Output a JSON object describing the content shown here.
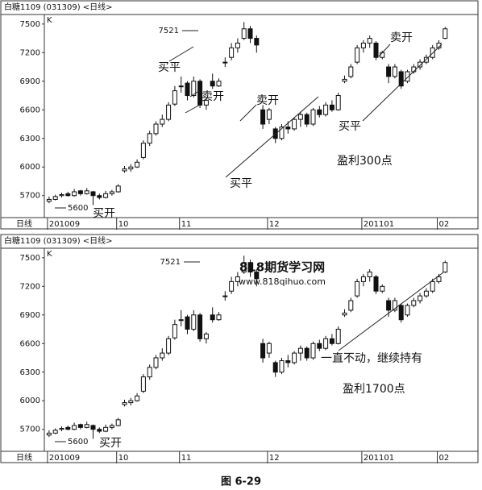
{
  "caption": "图 6-29",
  "chart_data": [
    {
      "type": "candlestick",
      "title": "白糖1109 (031309) <日线>",
      "k_label": "K",
      "period_label": "日线",
      "categories": [
        "201009",
        null,
        null,
        null,
        null,
        null,
        null,
        null,
        null,
        null,
        null,
        "10",
        null,
        null,
        null,
        null,
        null,
        null,
        null,
        null,
        null,
        "11",
        null,
        null,
        null,
        null,
        null,
        null,
        null,
        null,
        null,
        null,
        null,
        null,
        null,
        "12",
        null,
        null,
        null,
        null,
        null,
        null,
        null,
        null,
        null,
        null,
        null,
        null,
        null,
        null,
        "201101",
        null,
        null,
        null,
        null,
        null,
        null,
        null,
        null,
        null,
        null,
        null,
        "02",
        null
      ],
      "ohlc": [
        [
          5640,
          5690,
          5620,
          5660
        ],
        [
          5660,
          5710,
          5650,
          5690
        ],
        [
          5700,
          5730,
          5680,
          5710
        ],
        [
          5720,
          5740,
          5690,
          5700
        ],
        [
          5700,
          5770,
          5690,
          5740
        ],
        [
          5750,
          5760,
          5700,
          5720
        ],
        [
          5720,
          5780,
          5710,
          5750
        ],
        [
          5740,
          5750,
          5600,
          5700
        ],
        [
          5700,
          5720,
          5660,
          5680
        ],
        [
          5680,
          5750,
          5670,
          5720
        ],
        [
          5720,
          5760,
          5700,
          5740
        ],
        [
          5740,
          5820,
          5730,
          5800
        ],
        [
          5960,
          6010,
          5940,
          5980
        ],
        [
          5980,
          6030,
          5950,
          6000
        ],
        [
          6000,
          6080,
          5990,
          6050
        ],
        [
          6100,
          6280,
          6080,
          6250
        ],
        [
          6250,
          6380,
          6220,
          6350
        ],
        [
          6350,
          6480,
          6330,
          6450
        ],
        [
          6450,
          6550,
          6420,
          6500
        ],
        [
          6500,
          6680,
          6480,
          6650
        ],
        [
          6660,
          6850,
          6640,
          6800
        ],
        [
          6850,
          6950,
          6780,
          6850
        ],
        [
          6880,
          6900,
          6700,
          6750
        ],
        [
          6750,
          6950,
          6730,
          6900
        ],
        [
          6900,
          6920,
          6620,
          6650
        ],
        [
          6650,
          6720,
          6600,
          6700
        ],
        [
          6900,
          6980,
          6820,
          6850
        ],
        [
          6850,
          6930,
          6840,
          6900
        ],
        [
          7100,
          7150,
          7050,
          7100
        ],
        [
          7150,
          7300,
          7120,
          7250
        ],
        [
          7250,
          7350,
          7200,
          7300
        ],
        [
          7350,
          7521,
          7330,
          7450
        ],
        [
          7450,
          7480,
          7300,
          7350
        ],
        [
          7350,
          7380,
          7200,
          7280
        ],
        [
          6600,
          6650,
          6400,
          6450
        ],
        [
          6500,
          6620,
          6450,
          6600
        ],
        [
          6400,
          6420,
          6250,
          6300
        ],
        [
          6300,
          6450,
          6280,
          6420
        ],
        [
          6420,
          6480,
          6350,
          6400
        ],
        [
          6400,
          6520,
          6380,
          6500
        ],
        [
          6500,
          6580,
          6420,
          6550
        ],
        [
          6550,
          6570,
          6420,
          6450
        ],
        [
          6450,
          6620,
          6430,
          6600
        ],
        [
          6600,
          6640,
          6520,
          6550
        ],
        [
          6550,
          6680,
          6530,
          6650
        ],
        [
          6650,
          6700,
          6580,
          6600
        ],
        [
          6600,
          6780,
          6590,
          6750
        ],
        [
          6900,
          6960,
          6880,
          6920
        ],
        [
          6950,
          7080,
          6930,
          7050
        ],
        [
          7100,
          7280,
          7080,
          7250
        ],
        [
          7250,
          7330,
          7200,
          7300
        ],
        [
          7300,
          7380,
          7250,
          7350
        ],
        [
          7300,
          7320,
          7120,
          7150
        ],
        [
          7150,
          7220,
          7130,
          7200
        ],
        [
          7050,
          7080,
          6880,
          6950
        ],
        [
          6950,
          7080,
          6930,
          7050
        ],
        [
          7000,
          7020,
          6820,
          6850
        ],
        [
          6900,
          7020,
          6880,
          7000
        ],
        [
          7000,
          7080,
          6980,
          7050
        ],
        [
          7050,
          7130,
          7020,
          7100
        ],
        [
          7100,
          7180,
          7080,
          7150
        ],
        [
          7150,
          7280,
          7130,
          7250
        ],
        [
          7250,
          7330,
          7230,
          7300
        ],
        [
          7350,
          7470,
          7340,
          7450
        ]
      ],
      "ylim": [
        5520,
        7600
      ],
      "yticks": [
        5700,
        6000,
        6300,
        6600,
        6900,
        7200,
        7500
      ],
      "annotations": [
        "7521",
        "买平",
        "卖开",
        "卖开",
        "买平",
        "卖开",
        "买平",
        "盈利300点",
        "买开",
        "5600"
      ]
    },
    {
      "type": "candlestick",
      "title": "白糖1109 (031309) <日线>",
      "k_label": "K",
      "period_label": "日线",
      "categories": [
        "201009",
        null,
        null,
        null,
        null,
        null,
        null,
        null,
        null,
        null,
        null,
        "10",
        null,
        null,
        null,
        null,
        null,
        null,
        null,
        null,
        null,
        "11",
        null,
        null,
        null,
        null,
        null,
        null,
        null,
        null,
        null,
        null,
        null,
        null,
        null,
        "12",
        null,
        null,
        null,
        null,
        null,
        null,
        null,
        null,
        null,
        null,
        null,
        null,
        null,
        null,
        "201101",
        null,
        null,
        null,
        null,
        null,
        null,
        null,
        null,
        null,
        null,
        null,
        "02",
        null
      ],
      "ohlc": [
        [
          5640,
          5690,
          5620,
          5660
        ],
        [
          5660,
          5710,
          5650,
          5690
        ],
        [
          5700,
          5730,
          5680,
          5710
        ],
        [
          5720,
          5740,
          5690,
          5700
        ],
        [
          5700,
          5770,
          5690,
          5740
        ],
        [
          5750,
          5760,
          5700,
          5720
        ],
        [
          5720,
          5780,
          5710,
          5750
        ],
        [
          5740,
          5750,
          5600,
          5700
        ],
        [
          5700,
          5720,
          5660,
          5680
        ],
        [
          5680,
          5750,
          5670,
          5720
        ],
        [
          5720,
          5760,
          5700,
          5740
        ],
        [
          5740,
          5820,
          5730,
          5800
        ],
        [
          5960,
          6010,
          5940,
          5980
        ],
        [
          5980,
          6030,
          5950,
          6000
        ],
        [
          6000,
          6080,
          5990,
          6050
        ],
        [
          6100,
          6280,
          6080,
          6250
        ],
        [
          6250,
          6380,
          6220,
          6350
        ],
        [
          6350,
          6480,
          6330,
          6450
        ],
        [
          6450,
          6550,
          6420,
          6500
        ],
        [
          6500,
          6680,
          6480,
          6650
        ],
        [
          6660,
          6850,
          6640,
          6800
        ],
        [
          6850,
          6950,
          6780,
          6850
        ],
        [
          6880,
          6900,
          6700,
          6750
        ],
        [
          6750,
          6950,
          6730,
          6900
        ],
        [
          6900,
          6920,
          6620,
          6650
        ],
        [
          6650,
          6720,
          6600,
          6700
        ],
        [
          6900,
          6980,
          6820,
          6850
        ],
        [
          6850,
          6930,
          6840,
          6900
        ],
        [
          7100,
          7150,
          7050,
          7100
        ],
        [
          7150,
          7300,
          7120,
          7250
        ],
        [
          7250,
          7350,
          7200,
          7300
        ],
        [
          7350,
          7521,
          7330,
          7450
        ],
        [
          7450,
          7480,
          7300,
          7350
        ],
        [
          7350,
          7380,
          7200,
          7280
        ],
        [
          6600,
          6650,
          6400,
          6450
        ],
        [
          6500,
          6620,
          6450,
          6600
        ],
        [
          6400,
          6420,
          6250,
          6300
        ],
        [
          6300,
          6450,
          6280,
          6420
        ],
        [
          6420,
          6480,
          6350,
          6400
        ],
        [
          6400,
          6520,
          6380,
          6500
        ],
        [
          6500,
          6580,
          6420,
          6550
        ],
        [
          6550,
          6570,
          6420,
          6450
        ],
        [
          6450,
          6620,
          6430,
          6600
        ],
        [
          6600,
          6640,
          6520,
          6550
        ],
        [
          6550,
          6680,
          6530,
          6650
        ],
        [
          6650,
          6700,
          6580,
          6600
        ],
        [
          6600,
          6780,
          6590,
          6750
        ],
        [
          6900,
          6960,
          6880,
          6920
        ],
        [
          6950,
          7080,
          6930,
          7050
        ],
        [
          7100,
          7280,
          7080,
          7250
        ],
        [
          7250,
          7330,
          7200,
          7300
        ],
        [
          7300,
          7380,
          7250,
          7350
        ],
        [
          7300,
          7320,
          7120,
          7150
        ],
        [
          7150,
          7220,
          7130,
          7200
        ],
        [
          7050,
          7080,
          6880,
          6950
        ],
        [
          6950,
          7080,
          6930,
          7050
        ],
        [
          7000,
          7020,
          6820,
          6850
        ],
        [
          6900,
          7020,
          6880,
          7000
        ],
        [
          7000,
          7080,
          6980,
          7050
        ],
        [
          7050,
          7130,
          7020,
          7100
        ],
        [
          7100,
          7180,
          7080,
          7150
        ],
        [
          7150,
          7280,
          7130,
          7250
        ],
        [
          7250,
          7330,
          7230,
          7300
        ],
        [
          7350,
          7470,
          7340,
          7450
        ]
      ],
      "ylim": [
        5520,
        7600
      ],
      "yticks": [
        5700,
        6000,
        6300,
        6600,
        6900,
        7200,
        7500
      ],
      "annotations": [
        "7521",
        "5600",
        "买开",
        "一直不动，继续持有",
        "盈利1700点"
      ],
      "watermark": [
        "818期货学习网",
        "www.818qihuo.com"
      ]
    }
  ]
}
